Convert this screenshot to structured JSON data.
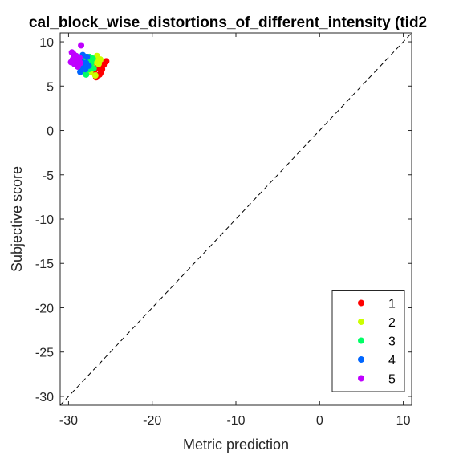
{
  "chart_data": {
    "type": "scatter",
    "title": "cal_block_wise_distortions_of_different_intensity (tid2",
    "xlabel": "Metric prediction",
    "ylabel": "Subjective score",
    "xlim": [
      -31,
      11
    ],
    "ylim": [
      -31,
      11
    ],
    "x_ticks": [
      -30,
      -20,
      -10,
      0,
      10
    ],
    "y_ticks": [
      10,
      5,
      0,
      -5,
      -10,
      -15,
      -20,
      -25,
      -30
    ],
    "x_tick_labels": [
      "-30",
      "-20",
      "-10",
      "0",
      "10"
    ],
    "y_tick_labels": [
      "10",
      "5",
      "0",
      "-5",
      "-10",
      "-15",
      "-20",
      "-25",
      "-30"
    ],
    "grid": false,
    "reference_line": {
      "style": "dashed",
      "from": [
        -31,
        -31
      ],
      "to": [
        11,
        11
      ]
    },
    "legend_position": "bottom-right",
    "series": [
      {
        "name": "1",
        "color": "#ff0000",
        "points": [
          [
            -25.5,
            7.8
          ],
          [
            -26.0,
            6.9
          ],
          [
            -26.3,
            6.3
          ],
          [
            -26.7,
            6.0
          ],
          [
            -27.0,
            6.5
          ],
          [
            -26.5,
            7.1
          ],
          [
            -27.2,
            7.3
          ],
          [
            -26.1,
            6.6
          ],
          [
            -25.8,
            7.4
          ],
          [
            -26.9,
            6.8
          ]
        ]
      },
      {
        "name": "2",
        "color": "#ccff00",
        "points": [
          [
            -26.6,
            8.4
          ],
          [
            -26.9,
            7.8
          ],
          [
            -27.1,
            7.1
          ],
          [
            -26.4,
            7.5
          ],
          [
            -27.4,
            6.6
          ],
          [
            -26.8,
            6.2
          ],
          [
            -27.6,
            7.9
          ],
          [
            -26.2,
            8.0
          ],
          [
            -27.3,
            8.2
          ],
          [
            -27.8,
            6.9
          ]
        ]
      },
      {
        "name": "3",
        "color": "#00ff66",
        "points": [
          [
            -27.3,
            7.6
          ],
          [
            -27.6,
            6.9
          ],
          [
            -27.9,
            6.3
          ],
          [
            -27.1,
            8.1
          ],
          [
            -28.0,
            7.4
          ],
          [
            -27.5,
            8.3
          ],
          [
            -28.2,
            6.8
          ],
          [
            -27.0,
            7.0
          ],
          [
            -27.7,
            7.8
          ],
          [
            -28.3,
            7.9
          ]
        ]
      },
      {
        "name": "4",
        "color": "#0066ff",
        "points": [
          [
            -27.9,
            7.6
          ],
          [
            -28.2,
            7.1
          ],
          [
            -28.6,
            6.6
          ],
          [
            -27.8,
            8.3
          ],
          [
            -28.4,
            7.7
          ],
          [
            -28.0,
            6.9
          ],
          [
            -28.7,
            8.1
          ],
          [
            -27.6,
            7.3
          ],
          [
            -28.3,
            8.5
          ],
          [
            -28.8,
            7.2
          ]
        ]
      },
      {
        "name": "5",
        "color": "#bf00ff",
        "points": [
          [
            -28.5,
            9.6
          ],
          [
            -29.1,
            8.4
          ],
          [
            -29.5,
            8.0
          ],
          [
            -29.3,
            7.5
          ],
          [
            -28.9,
            7.2
          ],
          [
            -29.6,
            8.8
          ],
          [
            -28.7,
            8.2
          ],
          [
            -29.2,
            7.9
          ],
          [
            -29.4,
            8.6
          ],
          [
            -28.6,
            7.6
          ],
          [
            -29.0,
            8.0
          ],
          [
            -29.7,
            7.7
          ]
        ]
      }
    ]
  }
}
